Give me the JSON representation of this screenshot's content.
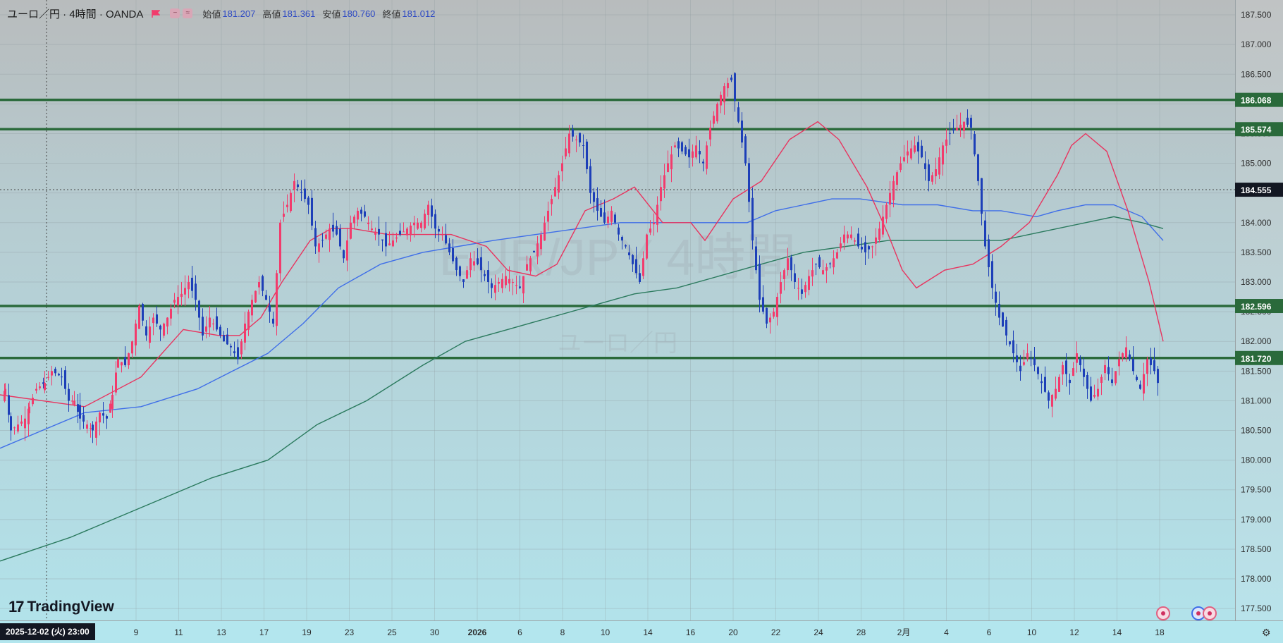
{
  "header": {
    "symbol": "ユーロ／円 · 4時間 · OANDA",
    "open_label": "始値",
    "open": "181.207",
    "high_label": "高値",
    "high": "181.361",
    "low_label": "安値",
    "low": "180.760",
    "close_label": "終値",
    "close": "181.012"
  },
  "watermark": {
    "main": "EUR/JPY 4時間",
    "sub": "ユーロ／円"
  },
  "logo": "TradingView",
  "crosshair_date": "2025-12-02 (火)   23:00",
  "colors": {
    "up": "#f23b6c",
    "down": "#1d3fb8",
    "sma_fast": "#e8345f",
    "sma_mid": "#3f6ee8",
    "sma_slow": "#2b7a5e",
    "level": "#2a6a3b",
    "last_price_bg": "#131722"
  },
  "chart_data": {
    "type": "candlestick",
    "title": "ユーロ／円 · 4時間 · OANDA",
    "ylim": [
      177.3,
      187.75
    ],
    "yticks": [
      "187.500",
      "187.000",
      "186.500",
      "186.000",
      "185.500",
      "185.000",
      "184.500",
      "184.000",
      "183.500",
      "183.000",
      "182.500",
      "182.000",
      "181.500",
      "181.000",
      "180.500",
      "180.000",
      "179.500",
      "179.000",
      "178.500",
      "178.000",
      "177.500"
    ],
    "xticks": [
      "9",
      "11",
      "13",
      "17",
      "19",
      "23",
      "25",
      "30",
      "2026",
      "6",
      "8",
      "10",
      "14",
      "16",
      "20",
      "22",
      "24",
      "28",
      "2月",
      "4",
      "6",
      "10",
      "12",
      "14",
      "18"
    ],
    "horizontal_levels": [
      "186.068",
      "185.574",
      "182.596",
      "181.720"
    ],
    "last_price": "184.555",
    "candles_path": [
      [
        0,
        181.0
      ],
      [
        6,
        181.2
      ],
      [
        14,
        180.5
      ],
      [
        24,
        180.6
      ],
      [
        34,
        180.7
      ],
      [
        40,
        180.9
      ],
      [
        50,
        181.2
      ],
      [
        62,
        181.3
      ],
      [
        72,
        181.5
      ],
      [
        86,
        181.4
      ],
      [
        96,
        181.0
      ],
      [
        104,
        181.0
      ],
      [
        112,
        180.7
      ],
      [
        122,
        180.6
      ],
      [
        130,
        180.5
      ],
      [
        140,
        180.8
      ],
      [
        150,
        180.7
      ],
      [
        158,
        181.1
      ],
      [
        166,
        181.7
      ],
      [
        176,
        181.6
      ],
      [
        186,
        182.0
      ],
      [
        196,
        182.6
      ],
      [
        206,
        182.1
      ],
      [
        216,
        182.4
      ],
      [
        226,
        182.2
      ],
      [
        236,
        182.4
      ],
      [
        246,
        182.7
      ],
      [
        256,
        182.8
      ],
      [
        266,
        183.0
      ],
      [
        276,
        182.7
      ],
      [
        286,
        182.1
      ],
      [
        296,
        182.4
      ],
      [
        306,
        182.2
      ],
      [
        316,
        182.0
      ],
      [
        326,
        181.9
      ],
      [
        336,
        181.7
      ],
      [
        346,
        182.3
      ],
      [
        356,
        182.7
      ],
      [
        366,
        183.0
      ],
      [
        376,
        182.7
      ],
      [
        386,
        182.3
      ],
      [
        396,
        184.0
      ],
      [
        406,
        184.3
      ],
      [
        416,
        184.7
      ],
      [
        426,
        184.5
      ],
      [
        436,
        184.3
      ],
      [
        446,
        183.6
      ],
      [
        456,
        183.7
      ],
      [
        466,
        183.9
      ],
      [
        476,
        183.8
      ],
      [
        486,
        183.4
      ],
      [
        496,
        184.0
      ],
      [
        506,
        184.2
      ],
      [
        516,
        184.1
      ],
      [
        526,
        183.9
      ],
      [
        536,
        183.8
      ],
      [
        546,
        183.6
      ],
      [
        556,
        183.7
      ],
      [
        566,
        183.8
      ],
      [
        576,
        183.9
      ],
      [
        586,
        184.0
      ],
      [
        596,
        184.0
      ],
      [
        606,
        184.3
      ],
      [
        616,
        183.9
      ],
      [
        626,
        183.8
      ],
      [
        636,
        183.5
      ],
      [
        646,
        183.2
      ],
      [
        656,
        183.0
      ],
      [
        666,
        183.4
      ],
      [
        676,
        183.3
      ],
      [
        686,
        183.1
      ],
      [
        696,
        182.9
      ],
      [
        706,
        183.0
      ],
      [
        716,
        183.1
      ],
      [
        726,
        183.0
      ],
      [
        736,
        182.9
      ],
      [
        746,
        183.3
      ],
      [
        756,
        183.5
      ],
      [
        766,
        183.8
      ],
      [
        776,
        184.2
      ],
      [
        786,
        184.6
      ],
      [
        796,
        185.0
      ],
      [
        806,
        185.5
      ],
      [
        816,
        185.4
      ],
      [
        826,
        185.3
      ],
      [
        836,
        184.5
      ],
      [
        846,
        184.2
      ],
      [
        856,
        184.0
      ],
      [
        866,
        184.2
      ],
      [
        876,
        183.8
      ],
      [
        886,
        183.6
      ],
      [
        896,
        183.3
      ],
      [
        906,
        183.0
      ],
      [
        916,
        183.8
      ],
      [
        926,
        184.0
      ],
      [
        936,
        184.6
      ],
      [
        946,
        185.0
      ],
      [
        956,
        185.3
      ],
      [
        966,
        185.2
      ],
      [
        976,
        185.1
      ],
      [
        986,
        185.3
      ],
      [
        996,
        185.0
      ],
      [
        1006,
        185.6
      ],
      [
        1016,
        186.0
      ],
      [
        1026,
        186.3
      ],
      [
        1036,
        186.4
      ],
      [
        1046,
        185.7
      ],
      [
        1056,
        185.0
      ],
      [
        1066,
        183.7
      ],
      [
        1076,
        182.7
      ],
      [
        1086,
        182.3
      ],
      [
        1096,
        182.5
      ],
      [
        1106,
        183.0
      ],
      [
        1116,
        183.4
      ],
      [
        1126,
        183.0
      ],
      [
        1136,
        182.8
      ],
      [
        1146,
        183.1
      ],
      [
        1156,
        183.3
      ],
      [
        1166,
        183.2
      ],
      [
        1176,
        183.3
      ],
      [
        1186,
        183.5
      ],
      [
        1196,
        183.8
      ],
      [
        1206,
        183.8
      ],
      [
        1216,
        183.6
      ],
      [
        1226,
        183.5
      ],
      [
        1236,
        183.6
      ],
      [
        1246,
        183.9
      ],
      [
        1256,
        184.3
      ],
      [
        1266,
        184.7
      ],
      [
        1276,
        185.0
      ],
      [
        1286,
        185.2
      ],
      [
        1296,
        185.3
      ],
      [
        1306,
        185.1
      ],
      [
        1316,
        184.7
      ],
      [
        1326,
        184.9
      ],
      [
        1336,
        185.3
      ],
      [
        1346,
        185.5
      ],
      [
        1356,
        185.6
      ],
      [
        1366,
        185.7
      ],
      [
        1376,
        185.6
      ],
      [
        1386,
        184.7
      ],
      [
        1396,
        183.6
      ],
      [
        1406,
        182.9
      ],
      [
        1416,
        182.4
      ],
      [
        1426,
        182.1
      ],
      [
        1436,
        181.8
      ],
      [
        1446,
        181.5
      ],
      [
        1456,
        181.8
      ],
      [
        1466,
        181.6
      ],
      [
        1476,
        181.3
      ],
      [
        1486,
        181.0
      ],
      [
        1496,
        181.2
      ],
      [
        1506,
        181.6
      ],
      [
        1516,
        181.3
      ],
      [
        1526,
        181.8
      ],
      [
        1536,
        181.4
      ],
      [
        1546,
        181.0
      ],
      [
        1556,
        181.2
      ],
      [
        1566,
        181.6
      ],
      [
        1576,
        181.3
      ],
      [
        1586,
        181.7
      ],
      [
        1596,
        181.9
      ],
      [
        1606,
        181.5
      ],
      [
        1616,
        181.2
      ],
      [
        1626,
        181.7
      ],
      [
        1636,
        181.5
      ],
      [
        1646,
        181.1
      ]
    ],
    "sma_fast": [
      [
        0,
        181.1
      ],
      [
        120,
        180.9
      ],
      [
        200,
        181.4
      ],
      [
        260,
        182.2
      ],
      [
        310,
        182.1
      ],
      [
        340,
        182.1
      ],
      [
        370,
        182.4
      ],
      [
        400,
        183.0
      ],
      [
        440,
        183.7
      ],
      [
        470,
        183.9
      ],
      [
        500,
        183.9
      ],
      [
        550,
        183.8
      ],
      [
        600,
        183.8
      ],
      [
        640,
        183.8
      ],
      [
        690,
        183.6
      ],
      [
        720,
        183.2
      ],
      [
        760,
        183.1
      ],
      [
        790,
        183.3
      ],
      [
        830,
        184.2
      ],
      [
        870,
        184.4
      ],
      [
        900,
        184.6
      ],
      [
        940,
        184.0
      ],
      [
        980,
        184.0
      ],
      [
        1000,
        183.7
      ],
      [
        1040,
        184.4
      ],
      [
        1080,
        184.7
      ],
      [
        1120,
        185.4
      ],
      [
        1160,
        185.7
      ],
      [
        1190,
        185.4
      ],
      [
        1230,
        184.6
      ],
      [
        1260,
        183.8
      ],
      [
        1280,
        183.2
      ],
      [
        1300,
        182.9
      ],
      [
        1340,
        183.2
      ],
      [
        1380,
        183.3
      ],
      [
        1420,
        183.6
      ],
      [
        1460,
        184.0
      ],
      [
        1500,
        184.8
      ],
      [
        1520,
        185.3
      ],
      [
        1540,
        185.5
      ],
      [
        1570,
        185.2
      ],
      [
        1600,
        184.2
      ],
      [
        1630,
        183.0
      ],
      [
        1650,
        182.0
      ]
    ],
    "sma_mid": [
      [
        0,
        180.2
      ],
      [
        60,
        180.5
      ],
      [
        120,
        180.8
      ],
      [
        200,
        180.9
      ],
      [
        280,
        181.2
      ],
      [
        330,
        181.5
      ],
      [
        380,
        181.8
      ],
      [
        430,
        182.3
      ],
      [
        480,
        182.9
      ],
      [
        540,
        183.3
      ],
      [
        600,
        183.5
      ],
      [
        650,
        183.6
      ],
      [
        700,
        183.7
      ],
      [
        760,
        183.8
      ],
      [
        820,
        183.9
      ],
      [
        880,
        184.0
      ],
      [
        940,
        184.0
      ],
      [
        1000,
        184.0
      ],
      [
        1060,
        184.0
      ],
      [
        1100,
        184.2
      ],
      [
        1140,
        184.3
      ],
      [
        1180,
        184.4
      ],
      [
        1220,
        184.4
      ],
      [
        1280,
        184.3
      ],
      [
        1330,
        184.3
      ],
      [
        1380,
        184.2
      ],
      [
        1420,
        184.2
      ],
      [
        1470,
        184.1
      ],
      [
        1500,
        184.2
      ],
      [
        1540,
        184.3
      ],
      [
        1580,
        184.3
      ],
      [
        1620,
        184.1
      ],
      [
        1650,
        183.7
      ]
    ],
    "sma_slow": [
      [
        0,
        178.3
      ],
      [
        100,
        178.7
      ],
      [
        200,
        179.2
      ],
      [
        300,
        179.7
      ],
      [
        380,
        180.0
      ],
      [
        450,
        180.6
      ],
      [
        520,
        181.0
      ],
      [
        600,
        181.6
      ],
      [
        660,
        182.0
      ],
      [
        720,
        182.2
      ],
      [
        780,
        182.4
      ],
      [
        840,
        182.6
      ],
      [
        900,
        182.8
      ],
      [
        960,
        182.9
      ],
      [
        1020,
        183.1
      ],
      [
        1080,
        183.3
      ],
      [
        1140,
        183.5
      ],
      [
        1200,
        183.6
      ],
      [
        1260,
        183.7
      ],
      [
        1320,
        183.7
      ],
      [
        1380,
        183.7
      ],
      [
        1420,
        183.7
      ],
      [
        1460,
        183.8
      ],
      [
        1500,
        183.9
      ],
      [
        1540,
        184.0
      ],
      [
        1580,
        184.1
      ],
      [
        1620,
        184.0
      ],
      [
        1650,
        183.9
      ]
    ]
  }
}
